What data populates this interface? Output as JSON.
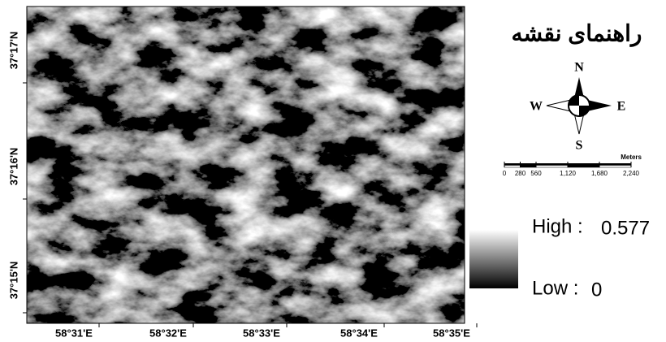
{
  "map": {
    "x_labels": [
      "58°31'E",
      "58°32'E",
      "58°33'E",
      "58°34'E",
      "58°35'E"
    ],
    "y_labels": [
      "37°17'N",
      "37°16'N",
      "37°15'N"
    ]
  },
  "legend": {
    "title": "راهنمای نقشه",
    "high_label": "High :",
    "high_value": 0.577,
    "low_label": "Low :",
    "low_value": 0
  },
  "north_arrow": {
    "north": "N",
    "south": "S",
    "east": "E",
    "west": "W"
  },
  "scale_bar": {
    "unit": "Meters",
    "ticks": [
      0,
      280,
      560,
      {
        "value": 1120,
        "label": "1,120"
      },
      {
        "value": 1680,
        "label": "1,680"
      },
      {
        "value": 2240,
        "label": "2,240"
      }
    ]
  }
}
